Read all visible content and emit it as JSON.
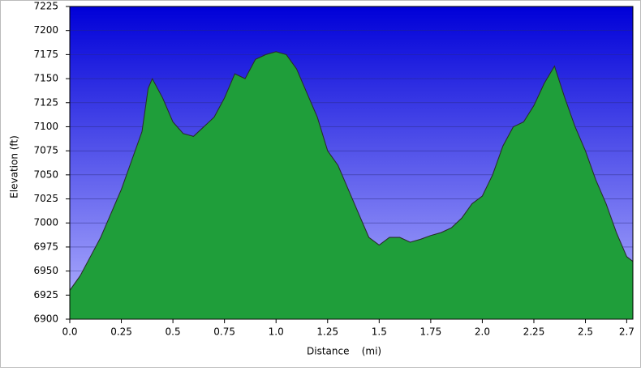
{
  "chart_data": {
    "type": "area",
    "x_label": "Distance    (mi)",
    "y_label": "Elevation (ft)",
    "x": [
      0,
      0.05,
      0.1,
      0.15,
      0.2,
      0.25,
      0.3,
      0.35,
      0.38,
      0.4,
      0.45,
      0.5,
      0.55,
      0.6,
      0.65,
      0.7,
      0.75,
      0.8,
      0.85,
      0.9,
      0.95,
      1.0,
      1.05,
      1.1,
      1.15,
      1.2,
      1.25,
      1.3,
      1.35,
      1.4,
      1.45,
      1.5,
      1.55,
      1.6,
      1.65,
      1.7,
      1.75,
      1.8,
      1.85,
      1.9,
      1.95,
      2.0,
      2.05,
      2.1,
      2.15,
      2.2,
      2.25,
      2.3,
      2.35,
      2.4,
      2.45,
      2.5,
      2.55,
      2.6,
      2.65,
      2.7,
      2.73
    ],
    "values": [
      6930,
      6945,
      6965,
      6985,
      7010,
      7035,
      7065,
      7095,
      7140,
      7150,
      7130,
      7105,
      7093,
      7090,
      7100,
      7110,
      7130,
      7155,
      7150,
      7170,
      7175,
      7178,
      7175,
      7160,
      7135,
      7110,
      7075,
      7060,
      7035,
      7010,
      6985,
      6977,
      6985,
      6985,
      6980,
      6983,
      6987,
      6990,
      6995,
      7005,
      7020,
      7028,
      7050,
      7080,
      7100,
      7105,
      7122,
      7145,
      7163,
      7130,
      7100,
      7075,
      7045,
      7020,
      6990,
      6965,
      6960
    ],
    "color": "#1f9a3a",
    "xlim": [
      0,
      2.73
    ],
    "ylim": [
      6900,
      7225
    ],
    "xticks": [
      {
        "value": 0,
        "label": "0.0"
      },
      0.25,
      0.5,
      0.75,
      {
        "value": 1,
        "label": "1.0"
      },
      1.25,
      1.5,
      1.75,
      {
        "value": 2,
        "label": "2.0"
      },
      2.25,
      2.5,
      2.7
    ],
    "yticks": [
      6900,
      6925,
      6950,
      6975,
      7000,
      7025,
      7050,
      7075,
      7100,
      7125,
      7150,
      7175,
      7200,
      7225
    ],
    "grid": true
  }
}
